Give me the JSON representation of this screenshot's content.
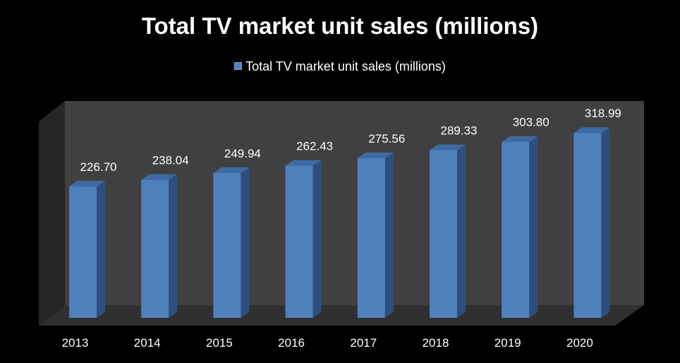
{
  "colors": {
    "background": "#000000",
    "bar_front": "#4f81bd",
    "bar_side": "#2e4f7d",
    "bar_top": "#3e6aa3",
    "back_wall": "#404040",
    "side_wall": "#262626",
    "floor": "#303030",
    "text": "#ffffff"
  },
  "chart_data": {
    "type": "bar",
    "title": "Total TV market unit sales (millions)",
    "legend": "Total TV market unit sales (millions)",
    "legend_position": "top",
    "categories": [
      "2013",
      "2014",
      "2015",
      "2016",
      "2017",
      "2018",
      "2019",
      "2020"
    ],
    "values": [
      226.7,
      238.04,
      249.94,
      262.43,
      275.56,
      289.33,
      303.8,
      318.99
    ],
    "labels": [
      "226.70",
      "238.04",
      "249.94",
      "262.43",
      "275.56",
      "289.33",
      "303.80",
      "318.99"
    ],
    "xlabel": "",
    "ylabel": "",
    "ylim": [
      0,
      350
    ],
    "grid": false,
    "style": "3d-column"
  }
}
